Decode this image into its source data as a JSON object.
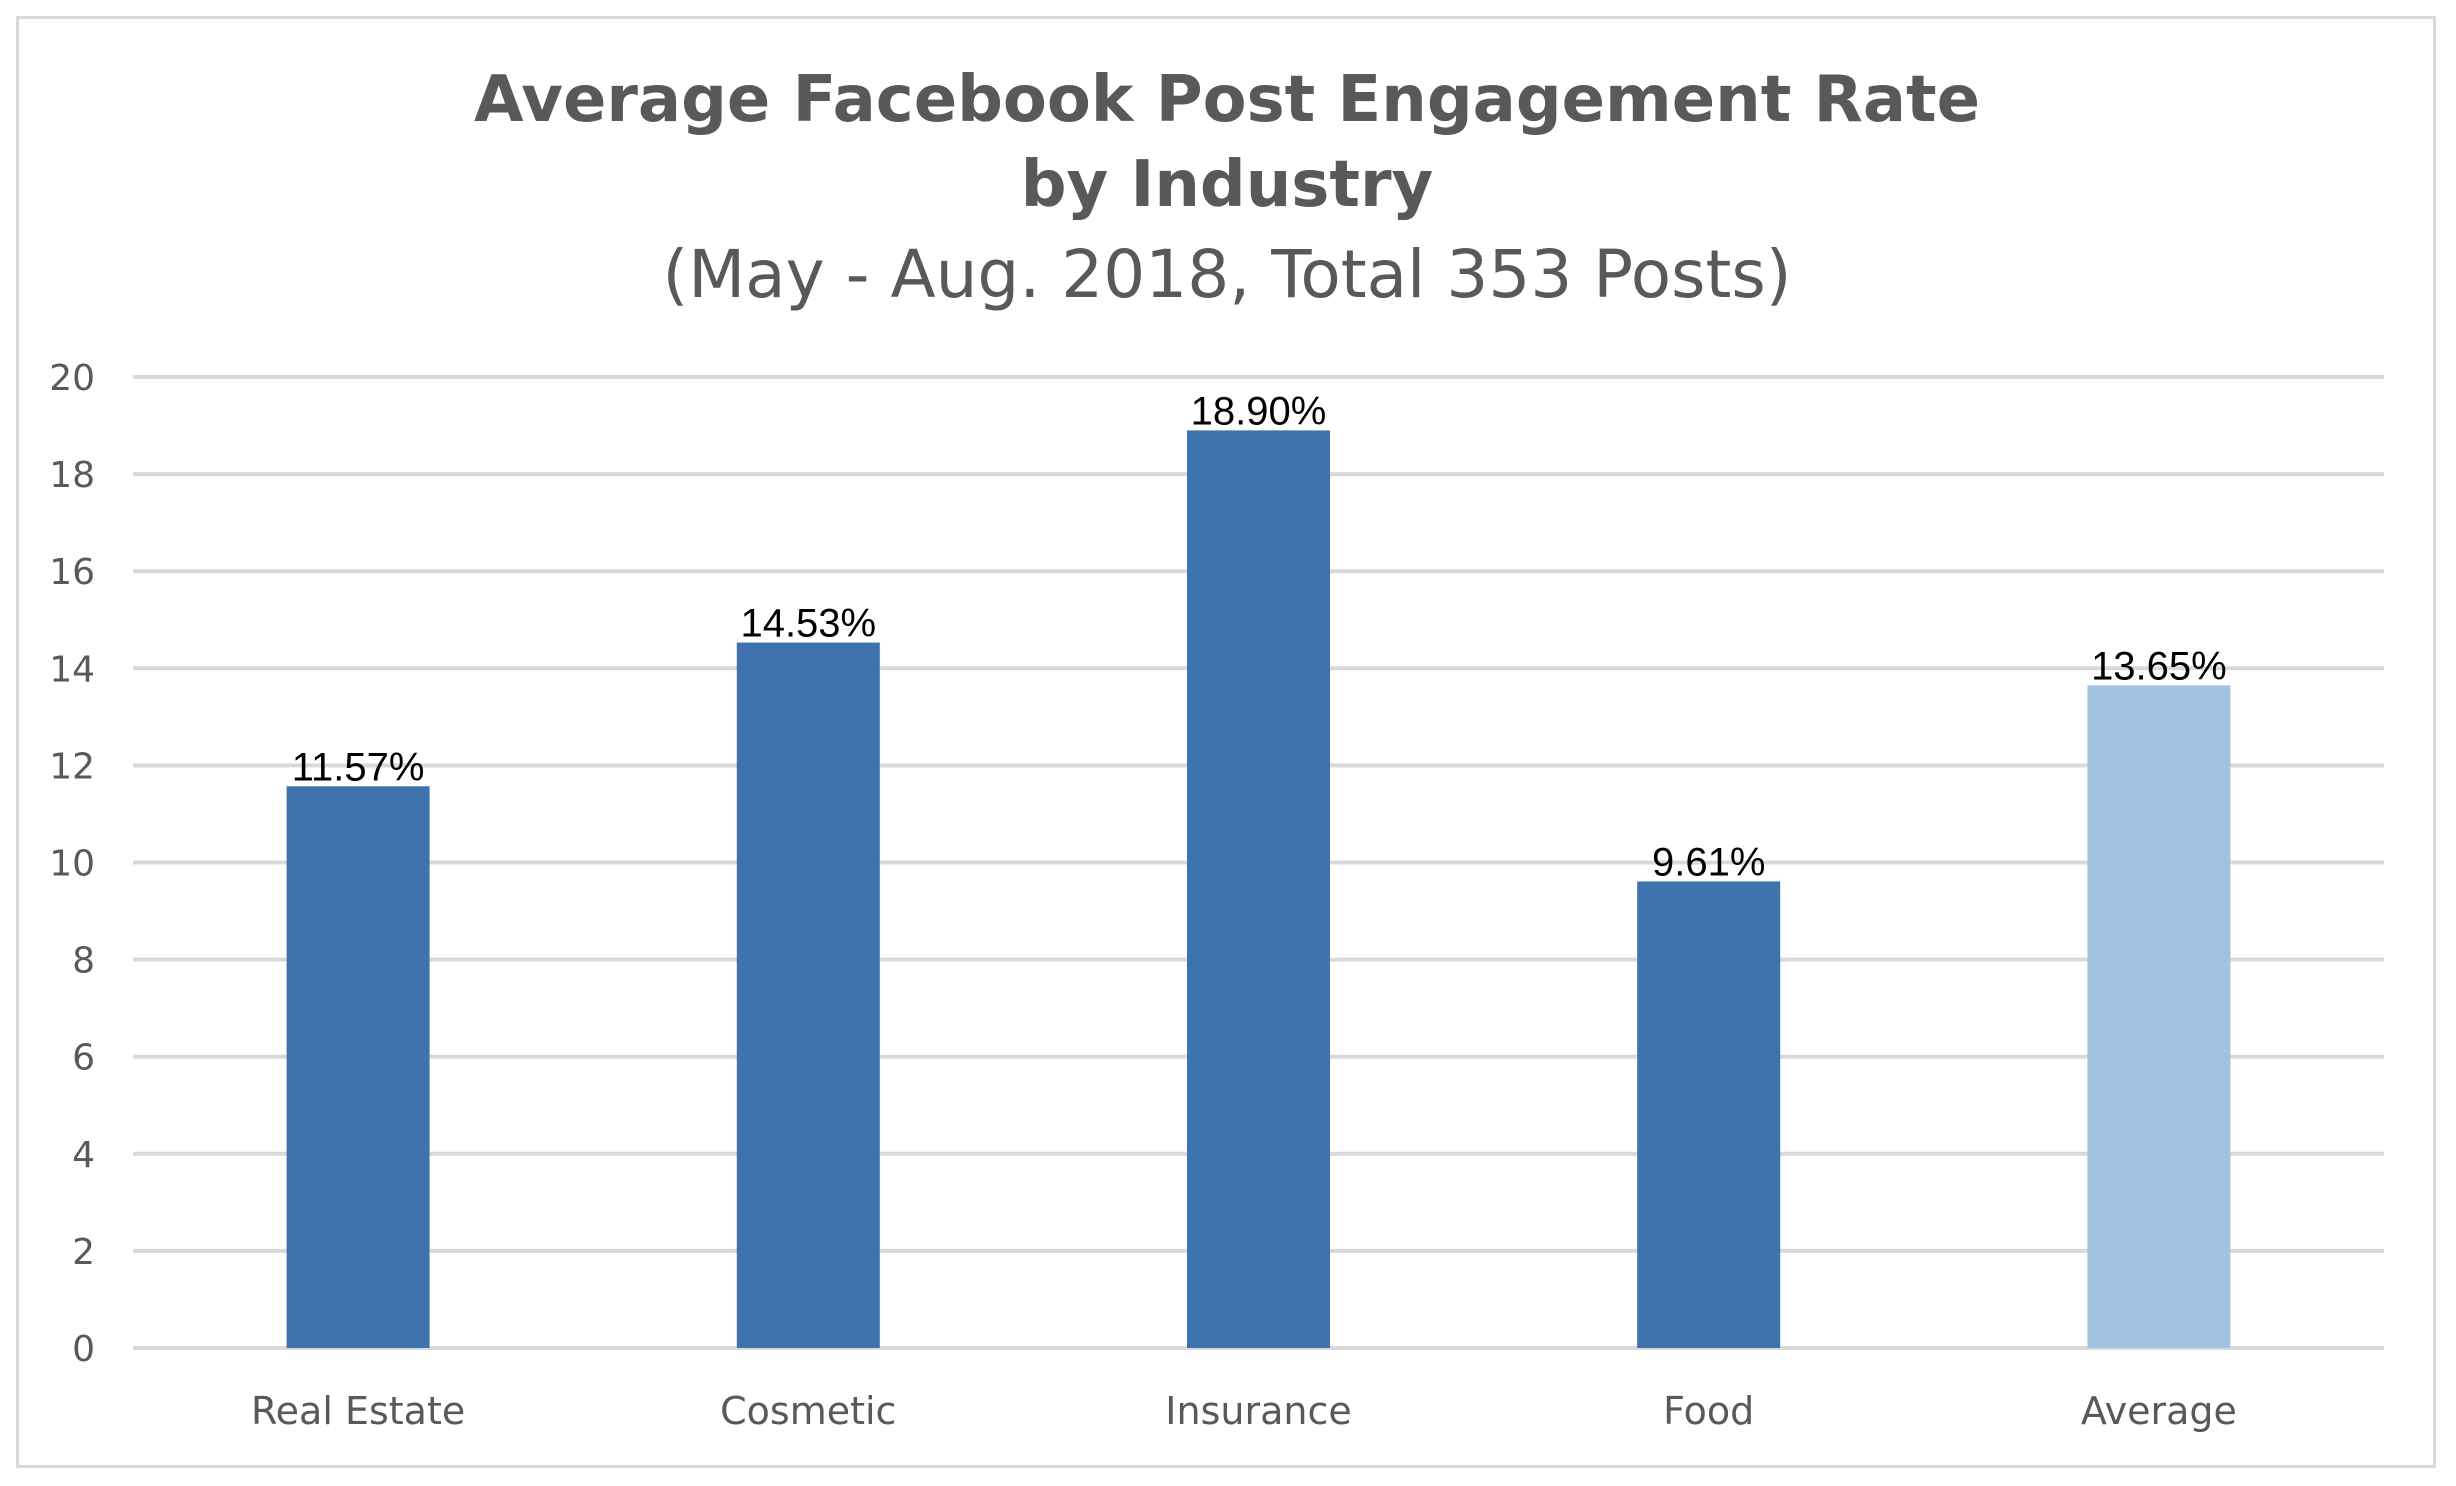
{
  "chart_data": {
    "type": "bar",
    "title_line1": "Average Facebook Post Engagement Rate",
    "title_line2": "by Industry",
    "subtitle": "(May - Aug. 2018, Total 353 Posts)",
    "xlabel": "",
    "ylabel": "",
    "ylim": [
      0,
      20
    ],
    "yticks": [
      0,
      2,
      4,
      6,
      8,
      10,
      12,
      14,
      16,
      18,
      20
    ],
    "grid": true,
    "legend": "none",
    "categories": [
      "Real Estate",
      "Cosmetic",
      "Insurance",
      "Food",
      "Average"
    ],
    "values": [
      11.57,
      14.53,
      18.9,
      9.61,
      13.65
    ],
    "data_labels": [
      "11.57%",
      "14.53%",
      "18.90%",
      "9.61%",
      "13.65%"
    ],
    "bar_colors": [
      "#3f73ae",
      "#3f73ae",
      "#3f73ae",
      "#3f73ae",
      "#a3c2e2"
    ]
  }
}
